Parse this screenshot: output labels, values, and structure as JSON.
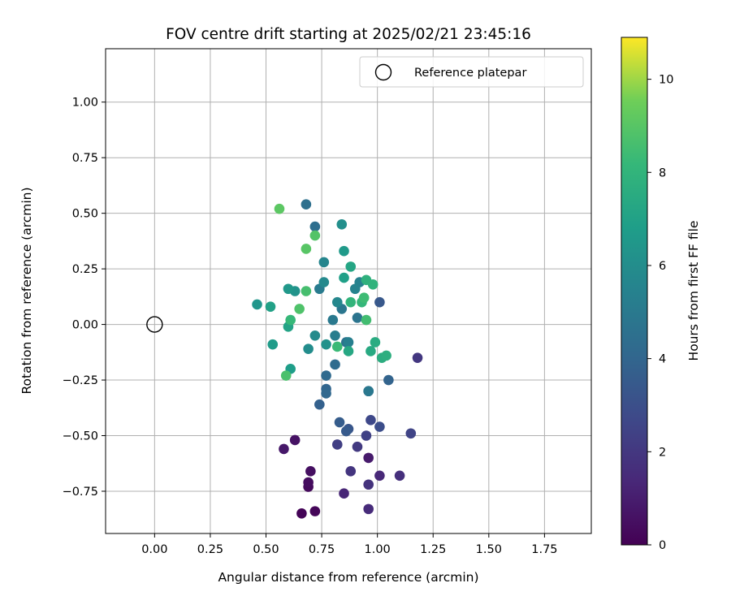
{
  "chart_data": {
    "type": "scatter",
    "title": "FOV centre drift starting at 2025/02/21 23:45:16",
    "xlabel": "Angular distance from reference (arcmin)",
    "ylabel": "Rotation from reference (arcmin)",
    "xlim": [
      -0.22,
      1.96
    ],
    "ylim": [
      -0.94,
      1.24
    ],
    "xticks": [
      "0.00",
      "0.25",
      "0.50",
      "0.75",
      "1.00",
      "1.25",
      "1.50",
      "1.75"
    ],
    "xtick_values": [
      0,
      0.25,
      0.5,
      0.75,
      1.0,
      1.25,
      1.5,
      1.75
    ],
    "yticks": [
      "−0.75",
      "−0.50",
      "−0.25",
      "0.00",
      "0.25",
      "0.50",
      "0.75",
      "1.00"
    ],
    "ytick_values": [
      -0.75,
      -0.5,
      -0.25,
      0,
      0.25,
      0.5,
      0.75,
      1.0
    ],
    "grid": true,
    "legend": {
      "placement": "top-right",
      "label": "Reference platepar"
    },
    "reference_point": [
      0,
      0
    ],
    "colorbar": {
      "label": "Hours from first FF file",
      "min": 0,
      "max": 10.9,
      "ticks": [
        "0",
        "2",
        "4",
        "6",
        "8",
        "10"
      ],
      "tick_values": [
        0,
        2,
        4,
        6,
        8,
        10
      ],
      "colormap": "viridis"
    },
    "points": [
      [
        0.66,
        -0.85,
        0.1
      ],
      [
        0.72,
        -0.84,
        0.2
      ],
      [
        0.69,
        -0.73,
        0.3
      ],
      [
        0.69,
        -0.71,
        0.4
      ],
      [
        0.7,
        -0.66,
        0.5
      ],
      [
        0.63,
        -0.52,
        0.6
      ],
      [
        0.58,
        -0.56,
        0.8
      ],
      [
        0.96,
        -0.6,
        0.9
      ],
      [
        0.85,
        -0.76,
        1.3
      ],
      [
        1.01,
        -0.68,
        1.4
      ],
      [
        0.96,
        -0.83,
        1.5
      ],
      [
        1.1,
        -0.68,
        1.7
      ],
      [
        0.96,
        -0.72,
        1.8
      ],
      [
        0.88,
        -0.66,
        1.9
      ],
      [
        1.18,
        -0.15,
        2.0
      ],
      [
        0.91,
        -0.55,
        2.1
      ],
      [
        0.82,
        -0.54,
        2.3
      ],
      [
        0.95,
        -0.5,
        2.4
      ],
      [
        1.15,
        -0.49,
        2.5
      ],
      [
        0.97,
        -0.43,
        2.7
      ],
      [
        1.01,
        -0.46,
        2.9
      ],
      [
        0.96,
        -0.3,
        3.1
      ],
      [
        0.87,
        -0.47,
        3.3
      ],
      [
        1.01,
        0.1,
        3.4
      ],
      [
        0.86,
        -0.48,
        3.5
      ],
      [
        0.83,
        -0.44,
        3.6
      ],
      [
        0.74,
        -0.36,
        3.8
      ],
      [
        1.05,
        -0.25,
        3.9
      ],
      [
        0.77,
        -0.29,
        4.0
      ],
      [
        0.77,
        -0.31,
        4.1
      ],
      [
        0.77,
        -0.23,
        4.2
      ],
      [
        0.81,
        -0.18,
        4.3
      ],
      [
        0.72,
        0.44,
        4.4
      ],
      [
        0.68,
        0.54,
        4.5
      ],
      [
        0.86,
        -0.08,
        4.6
      ],
      [
        0.91,
        0.03,
        4.7
      ],
      [
        0.84,
        0.07,
        4.8
      ],
      [
        0.96,
        -0.3,
        4.9
      ],
      [
        0.8,
        0.02,
        5.0
      ],
      [
        0.74,
        0.16,
        5.1
      ],
      [
        0.81,
        -0.05,
        5.2
      ],
      [
        0.87,
        -0.08,
        5.3
      ],
      [
        0.92,
        0.19,
        5.4
      ],
      [
        0.9,
        0.16,
        5.5
      ],
      [
        0.76,
        0.28,
        5.6
      ],
      [
        0.82,
        0.1,
        5.7
      ],
      [
        0.76,
        0.19,
        5.8
      ],
      [
        0.72,
        -0.05,
        5.9
      ],
      [
        0.69,
        -0.11,
        6.0
      ],
      [
        0.84,
        0.45,
        6.1
      ],
      [
        0.77,
        -0.09,
        6.2
      ],
      [
        0.63,
        0.15,
        6.3
      ],
      [
        0.46,
        0.09,
        6.4
      ],
      [
        0.6,
        0.16,
        6.5
      ],
      [
        0.85,
        0.33,
        6.6
      ],
      [
        0.53,
        -0.09,
        6.7
      ],
      [
        0.61,
        -0.2,
        6.8
      ],
      [
        0.85,
        0.21,
        6.9
      ],
      [
        0.52,
        0.08,
        7.0
      ],
      [
        0.6,
        -0.01,
        7.1
      ],
      [
        0.88,
        0.26,
        7.2
      ],
      [
        0.87,
        -0.12,
        7.3
      ],
      [
        0.97,
        -0.12,
        7.4
      ],
      [
        0.99,
        -0.08,
        7.5
      ],
      [
        1.02,
        -0.15,
        7.6
      ],
      [
        1.04,
        -0.14,
        7.7
      ],
      [
        0.95,
        0.2,
        7.8
      ],
      [
        0.98,
        0.18,
        7.9
      ],
      [
        0.88,
        0.1,
        8.0
      ],
      [
        0.93,
        0.1,
        8.1
      ],
      [
        0.61,
        0.02,
        8.2
      ],
      [
        0.82,
        -0.1,
        8.3
      ],
      [
        0.94,
        0.12,
        8.4
      ],
      [
        0.95,
        0.02,
        8.5
      ],
      [
        0.68,
        0.15,
        8.6
      ],
      [
        0.59,
        -0.23,
        8.7
      ],
      [
        0.65,
        0.07,
        8.8
      ],
      [
        0.72,
        0.4,
        8.9
      ],
      [
        0.68,
        0.34,
        9.0
      ],
      [
        0.56,
        0.52,
        9.1
      ]
    ]
  }
}
